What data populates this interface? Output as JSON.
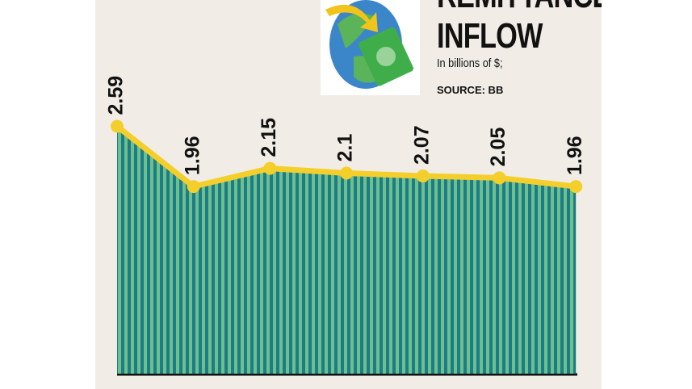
{
  "chart_data": {
    "type": "area",
    "title": "REMITTANCE INFLOW",
    "subtitle": "In billions of $;",
    "source": "SOURCE: BB",
    "categories": [
      null,
      null,
      null,
      null,
      null,
      null,
      null
    ],
    "values": [
      2.59,
      1.96,
      2.15,
      2.1,
      2.07,
      2.05,
      1.96
    ],
    "ylim": [
      0,
      3
    ],
    "line_color": "#f4cf2b",
    "fill_colors": [
      "#1e7b88",
      "#6cc08c"
    ]
  }
}
